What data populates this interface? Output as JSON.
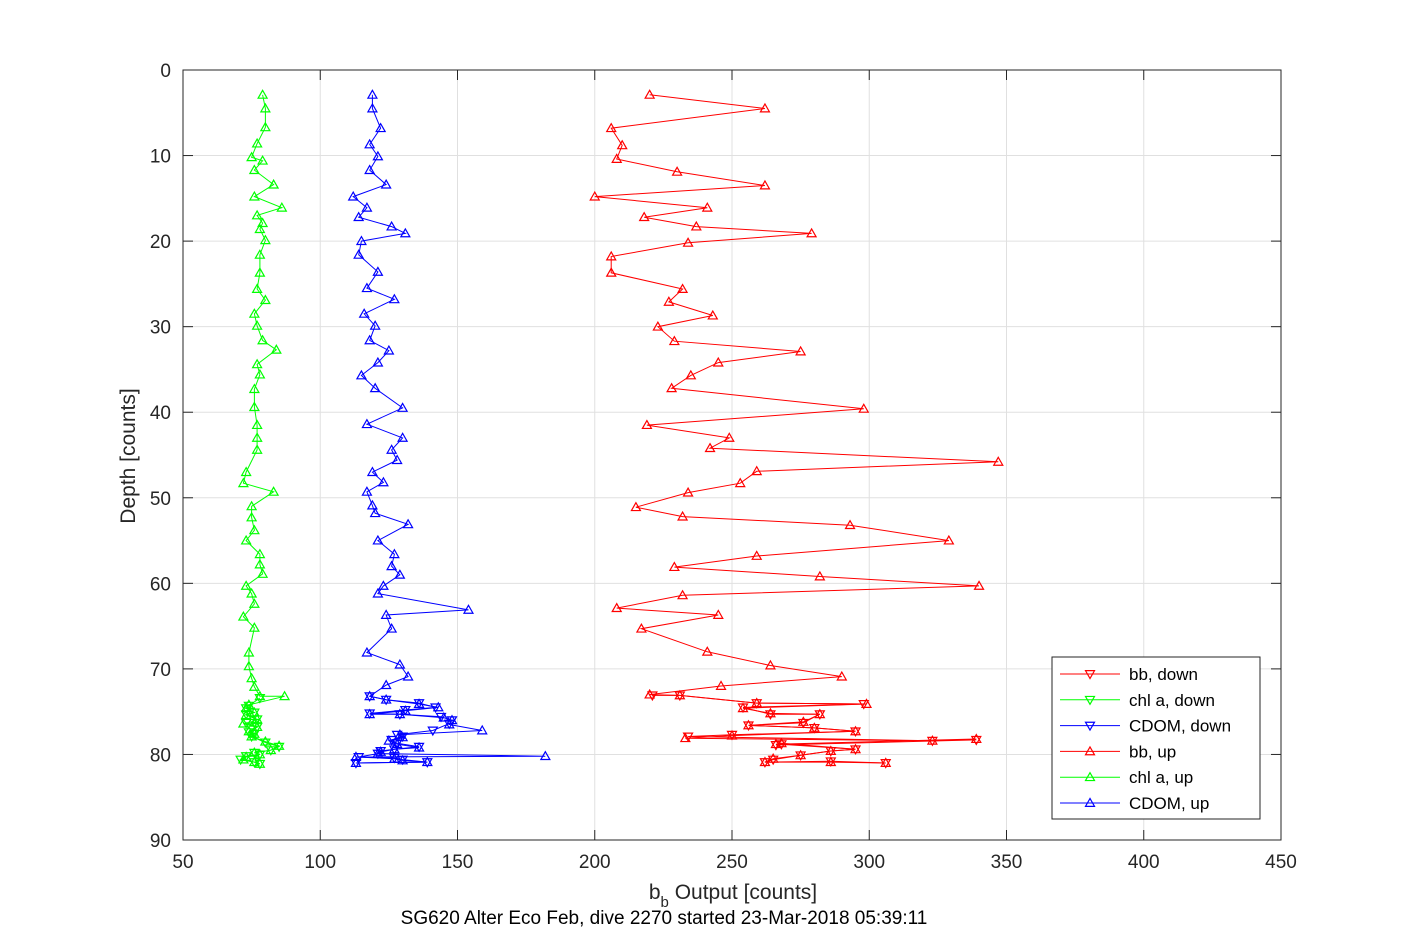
{
  "caption": "SG620 Alter Eco Feb, dive 2270 started 23-Mar-2018 05:39:11",
  "chart_data": {
    "type": "line",
    "title": "",
    "xlabel_main": "b",
    "xlabel_sub": "b",
    "xlabel_rest": " Output [counts]",
    "ylabel": "Depth [counts]",
    "xlim": [
      50,
      450
    ],
    "ylim": [
      0,
      90
    ],
    "y_reversed": true,
    "grid": true,
    "xticks": [
      50,
      100,
      150,
      200,
      250,
      300,
      350,
      400,
      450
    ],
    "yticks": [
      0,
      10,
      20,
      30,
      40,
      50,
      60,
      70,
      80,
      90
    ],
    "legend_placement": "bottom-right",
    "series": [
      {
        "name": "bb, down",
        "color": "#ff0000",
        "marker": "triangle-down",
        "points": [
          [
            221,
            73.1
          ],
          [
            231,
            73.1
          ],
          [
            259,
            74
          ],
          [
            298,
            74.1
          ],
          [
            254,
            74.5
          ],
          [
            264,
            75.3
          ],
          [
            282,
            75.3
          ],
          [
            276,
            76.3
          ],
          [
            256,
            76.6
          ],
          [
            280,
            76.9
          ],
          [
            295,
            77.3
          ],
          [
            250,
            77.7
          ],
          [
            234,
            77.9
          ],
          [
            323,
            78.4
          ],
          [
            339,
            78.3
          ],
          [
            266,
            78.9
          ],
          [
            268,
            78.8
          ],
          [
            295,
            79.4
          ],
          [
            286,
            79.6
          ],
          [
            275,
            80.1
          ],
          [
            265,
            80.6
          ],
          [
            262,
            80.9
          ],
          [
            286,
            80.8
          ],
          [
            306,
            81.0
          ]
        ]
      },
      {
        "name": "chl a, down",
        "color": "#00ff00",
        "marker": "triangle-down",
        "points": [
          [
            78,
            73.4
          ],
          [
            74,
            74.3
          ],
          [
            73,
            74.6
          ],
          [
            76,
            75.1
          ],
          [
            73,
            75.3
          ],
          [
            77,
            75.9
          ],
          [
            76,
            76.3
          ],
          [
            73,
            76.3
          ],
          [
            77,
            76.8
          ],
          [
            74,
            77.4
          ],
          [
            76,
            77.6
          ],
          [
            75,
            77.9
          ],
          [
            80,
            78.6
          ],
          [
            85,
            79.1
          ],
          [
            82,
            79.5
          ],
          [
            76,
            79.8
          ],
          [
            78,
            80.0
          ],
          [
            73,
            80.2
          ],
          [
            71,
            80.6
          ],
          [
            76,
            80.9
          ],
          [
            78,
            81.1
          ]
        ]
      },
      {
        "name": "CDOM, down",
        "color": "#0000ff",
        "marker": "triangle-down",
        "points": [
          [
            118,
            73.2
          ],
          [
            124,
            73.6
          ],
          [
            136,
            74.0
          ],
          [
            142,
            74.5
          ],
          [
            131,
            74.8
          ],
          [
            118,
            75.2
          ],
          [
            129,
            75.3
          ],
          [
            144,
            75.6
          ],
          [
            148,
            76.0
          ],
          [
            147,
            76.4
          ],
          [
            141,
            77.2
          ],
          [
            128,
            77.7
          ],
          [
            130,
            77.9
          ],
          [
            126,
            78.3
          ],
          [
            128,
            78.7
          ],
          [
            136,
            79.1
          ],
          [
            127,
            79.4
          ],
          [
            122,
            79.6
          ],
          [
            121,
            79.9
          ],
          [
            114,
            80.3
          ],
          [
            127,
            80.4
          ],
          [
            130,
            80.6
          ],
          [
            139,
            80.9
          ],
          [
            113,
            81.0
          ]
        ]
      },
      {
        "name": "bb, up",
        "color": "#ff0000",
        "marker": "triangle-up",
        "points": [
          [
            220,
            2.9
          ],
          [
            262,
            4.5
          ],
          [
            206,
            6.8
          ],
          [
            210,
            8.8
          ],
          [
            208,
            10.4
          ],
          [
            230,
            11.9
          ],
          [
            262,
            13.5
          ],
          [
            200,
            14.8
          ],
          [
            241,
            16.1
          ],
          [
            218,
            17.2
          ],
          [
            237,
            18.3
          ],
          [
            279,
            19.1
          ],
          [
            234,
            20.2
          ],
          [
            206,
            21.8
          ],
          [
            206,
            23.7
          ],
          [
            232,
            25.6
          ],
          [
            227,
            27.1
          ],
          [
            243,
            28.7
          ],
          [
            223,
            30.0
          ],
          [
            229,
            31.7
          ],
          [
            275,
            32.9
          ],
          [
            245,
            34.2
          ],
          [
            235,
            35.7
          ],
          [
            228,
            37.2
          ],
          [
            298,
            39.6
          ],
          [
            219,
            41.5
          ],
          [
            249,
            43.0
          ],
          [
            242,
            44.2
          ],
          [
            347,
            45.8
          ],
          [
            259,
            46.9
          ],
          [
            253,
            48.3
          ],
          [
            234,
            49.4
          ],
          [
            215,
            51.1
          ],
          [
            232,
            52.2
          ],
          [
            293,
            53.2
          ],
          [
            329,
            55.0
          ],
          [
            259,
            56.8
          ],
          [
            229,
            58.1
          ],
          [
            282,
            59.2
          ],
          [
            340,
            60.3
          ],
          [
            232,
            61.4
          ],
          [
            208,
            62.9
          ],
          [
            245,
            63.7
          ],
          [
            217,
            65.3
          ],
          [
            241,
            68.0
          ],
          [
            264,
            69.6
          ],
          [
            290,
            70.9
          ],
          [
            246,
            72.0
          ],
          [
            220,
            73.0
          ],
          [
            231,
            73.1
          ],
          [
            259,
            74.0
          ],
          [
            299,
            74.1
          ],
          [
            254,
            74.6
          ],
          [
            264,
            75.2
          ],
          [
            282,
            75.3
          ],
          [
            276,
            76.2
          ],
          [
            256,
            76.6
          ],
          [
            280,
            76.9
          ],
          [
            295,
            77.3
          ],
          [
            250,
            77.8
          ],
          [
            233,
            78.1
          ],
          [
            323,
            78.4
          ],
          [
            339,
            78.2
          ],
          [
            266,
            78.8
          ],
          [
            268,
            78.7
          ],
          [
            295,
            79.4
          ],
          [
            286,
            79.6
          ],
          [
            275,
            80.1
          ],
          [
            265,
            80.5
          ],
          [
            262,
            80.9
          ],
          [
            286,
            80.9
          ],
          [
            306,
            81.0
          ]
        ]
      },
      {
        "name": "chl a, up",
        "color": "#00ff00",
        "marker": "triangle-up",
        "points": [
          [
            79,
            2.9
          ],
          [
            80,
            4.5
          ],
          [
            80,
            6.7
          ],
          [
            77,
            8.6
          ],
          [
            75,
            10.2
          ],
          [
            79,
            10.6
          ],
          [
            76,
            11.7
          ],
          [
            83,
            13.4
          ],
          [
            76,
            14.8
          ],
          [
            86,
            16.1
          ],
          [
            77,
            17.0
          ],
          [
            79,
            17.9
          ],
          [
            78,
            18.6
          ],
          [
            80,
            19.9
          ],
          [
            78,
            21.6
          ],
          [
            78,
            23.7
          ],
          [
            77,
            25.6
          ],
          [
            80,
            26.9
          ],
          [
            76,
            28.5
          ],
          [
            77,
            29.9
          ],
          [
            79,
            31.6
          ],
          [
            84,
            32.7
          ],
          [
            77,
            34.4
          ],
          [
            78,
            35.6
          ],
          [
            76,
            37.3
          ],
          [
            76,
            39.4
          ],
          [
            77,
            41.5
          ],
          [
            77,
            43.0
          ],
          [
            77,
            44.4
          ],
          [
            73,
            47.0
          ],
          [
            72,
            48.3
          ],
          [
            83,
            49.3
          ],
          [
            75,
            51.0
          ],
          [
            75,
            52.3
          ],
          [
            76,
            53.8
          ],
          [
            73,
            55.0
          ],
          [
            78,
            56.6
          ],
          [
            78,
            57.8
          ],
          [
            79,
            58.9
          ],
          [
            73,
            60.3
          ],
          [
            75,
            61.2
          ],
          [
            76,
            62.4
          ],
          [
            72,
            63.9
          ],
          [
            76,
            65.2
          ],
          [
            74,
            68.1
          ],
          [
            74,
            69.7
          ],
          [
            75,
            71.1
          ],
          [
            76,
            72.1
          ],
          [
            78,
            73.2
          ],
          [
            87,
            73.2
          ],
          [
            74,
            74.2
          ],
          [
            73,
            74.6
          ],
          [
            76,
            75.1
          ],
          [
            73,
            75.4
          ],
          [
            77,
            75.9
          ],
          [
            76,
            76.3
          ],
          [
            72,
            76.4
          ],
          [
            77,
            76.8
          ],
          [
            74,
            77.3
          ],
          [
            76,
            77.6
          ],
          [
            75,
            77.9
          ],
          [
            80,
            78.5
          ],
          [
            85,
            79.0
          ],
          [
            82,
            79.5
          ],
          [
            76,
            79.8
          ],
          [
            78,
            80.0
          ],
          [
            73,
            80.3
          ],
          [
            72,
            80.6
          ],
          [
            76,
            80.9
          ],
          [
            78,
            81.1
          ]
        ]
      },
      {
        "name": "CDOM, up",
        "color": "#0000ff",
        "marker": "triangle-up",
        "points": [
          [
            119,
            2.9
          ],
          [
            119,
            4.5
          ],
          [
            122,
            6.8
          ],
          [
            118,
            8.7
          ],
          [
            121,
            10.1
          ],
          [
            118,
            11.7
          ],
          [
            124,
            13.4
          ],
          [
            112,
            14.8
          ],
          [
            117,
            16.1
          ],
          [
            114,
            17.2
          ],
          [
            126,
            18.3
          ],
          [
            131,
            19.1
          ],
          [
            115,
            20.0
          ],
          [
            114,
            21.6
          ],
          [
            121,
            23.6
          ],
          [
            117,
            25.5
          ],
          [
            127,
            26.8
          ],
          [
            116,
            28.5
          ],
          [
            120,
            29.9
          ],
          [
            118,
            31.6
          ],
          [
            125,
            32.8
          ],
          [
            121,
            34.2
          ],
          [
            115,
            35.7
          ],
          [
            120,
            37.2
          ],
          [
            130,
            39.5
          ],
          [
            117,
            41.4
          ],
          [
            130,
            43.0
          ],
          [
            126,
            44.4
          ],
          [
            128,
            45.6
          ],
          [
            119,
            47.0
          ],
          [
            123,
            48.2
          ],
          [
            117,
            49.3
          ],
          [
            119,
            50.9
          ],
          [
            120,
            51.8
          ],
          [
            132,
            53.1
          ],
          [
            121,
            55.0
          ],
          [
            127,
            56.6
          ],
          [
            126,
            58.0
          ],
          [
            129,
            59.0
          ],
          [
            123,
            60.3
          ],
          [
            121,
            61.2
          ],
          [
            154,
            63.1
          ],
          [
            124,
            63.7
          ],
          [
            126,
            65.3
          ],
          [
            117,
            68.1
          ],
          [
            129,
            69.5
          ],
          [
            132,
            70.9
          ],
          [
            124,
            71.9
          ],
          [
            118,
            73.2
          ],
          [
            124,
            73.6
          ],
          [
            136,
            74.1
          ],
          [
            143,
            74.5
          ],
          [
            131,
            74.9
          ],
          [
            118,
            75.3
          ],
          [
            129,
            75.3
          ],
          [
            145,
            75.7
          ],
          [
            148,
            76.0
          ],
          [
            147,
            76.5
          ],
          [
            159,
            77.2
          ],
          [
            129,
            77.7
          ],
          [
            130,
            78.0
          ],
          [
            125,
            78.4
          ],
          [
            128,
            78.8
          ],
          [
            136,
            79.2
          ],
          [
            127,
            79.4
          ],
          [
            122,
            79.7
          ],
          [
            121,
            79.9
          ],
          [
            182,
            80.2
          ],
          [
            113,
            80.3
          ],
          [
            127,
            80.5
          ],
          [
            130,
            80.7
          ],
          [
            139,
            80.9
          ],
          [
            113,
            81.0
          ]
        ]
      }
    ]
  }
}
